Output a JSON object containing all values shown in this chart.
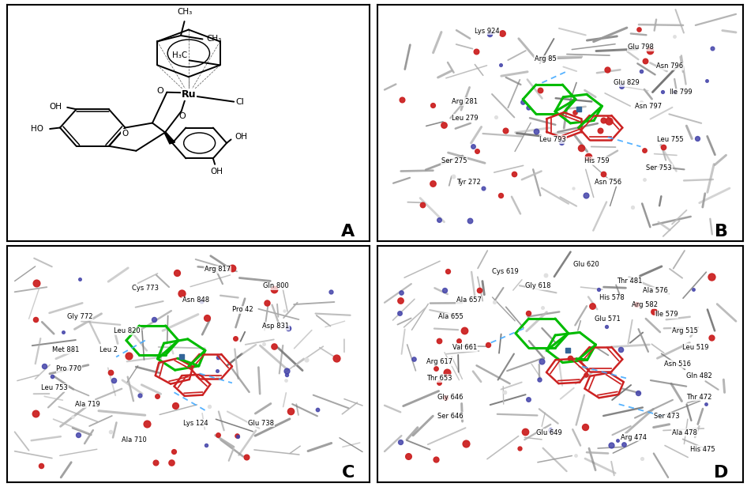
{
  "figure_width": 9.46,
  "figure_height": 6.16,
  "dpi": 100,
  "background_color": "#ffffff",
  "border_color": "#000000",
  "border_linewidth": 1.5,
  "panel_labels": [
    "A",
    "B",
    "C",
    "D"
  ],
  "panel_label_fontsize": 16,
  "panel_A": {
    "bg": "#ffffff",
    "bond_color": "#000000",
    "lw": 1.4,
    "text_fontsize": 7.5
  },
  "panel_BCD": {
    "bg": "#ffffff",
    "gray_stick_color": "#888888",
    "red_atom_color": "#cc2222",
    "blue_atom_color": "#5555cc",
    "green_ligand_color": "#00bb00",
    "label_fontsize": 6.0
  }
}
